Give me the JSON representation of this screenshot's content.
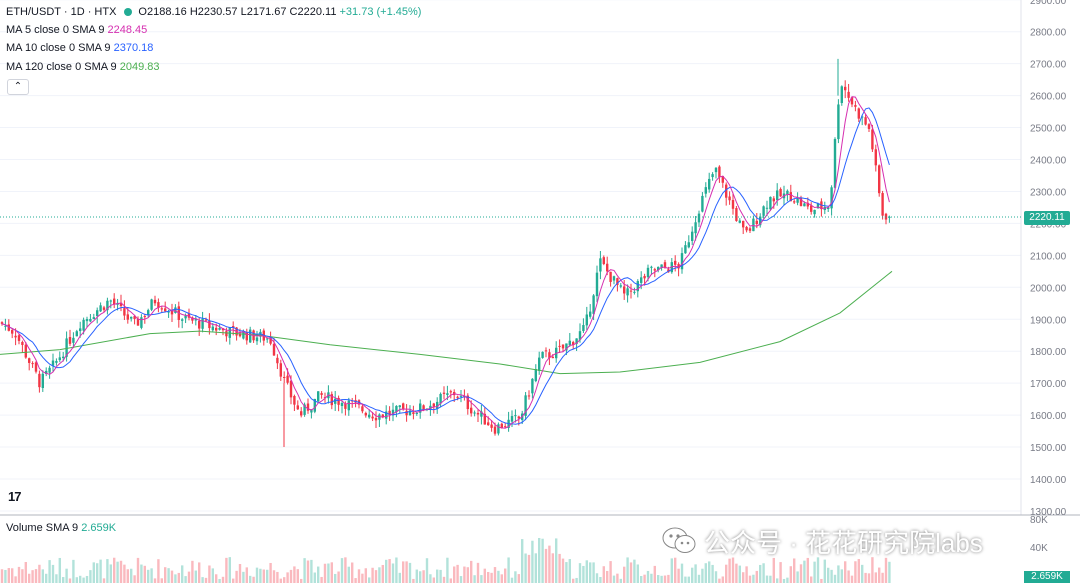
{
  "header": {
    "symbol": "ETH/USDT · 1D · HTX",
    "open": "O2188.16",
    "high": "H2230.57",
    "low": "L2171.67",
    "close": "C2220.11",
    "change": "+31.73 (+1.45%)"
  },
  "indicators": [
    {
      "label": "MA 5 close 0 SMA 9",
      "value": "2248.45",
      "color": "#d62fb0"
    },
    {
      "label": "MA 10 close 0 SMA 9",
      "value": "2370.18",
      "color": "#2962ff"
    },
    {
      "label": "MA 120 close 0 SMA 9",
      "value": "2049.83",
      "color": "#4caf50"
    }
  ],
  "collapse_glyph": "⌃",
  "volume_legend": {
    "label": "Volume SMA 9",
    "value": "2.659K"
  },
  "last_price_label": "2220.11",
  "volume_axis_labels": [
    "80K",
    "40K"
  ],
  "volume_last_label": "2.659K",
  "logo_text": "17",
  "watermark_text": "公众号 · 花花研究院labs",
  "colors": {
    "up": "#22ab94",
    "down": "#f23645",
    "grid": "#f0f3fa",
    "text": "#131722"
  },
  "chart_data": {
    "type": "candlestick",
    "y_ticks": [
      1300,
      1400,
      1500,
      1600,
      1700,
      1800,
      1900,
      2000,
      2100,
      2200,
      2300,
      2400,
      2500,
      2600,
      2700,
      2800,
      2900
    ],
    "ylim": [
      1300,
      2900
    ],
    "ma120_approx": [
      [
        0,
        1790
      ],
      [
        60,
        1805
      ],
      [
        150,
        1855
      ],
      [
        200,
        1863
      ],
      [
        260,
        1850
      ],
      [
        330,
        1820
      ],
      [
        420,
        1790
      ],
      [
        500,
        1760
      ],
      [
        560,
        1730
      ],
      [
        620,
        1735
      ],
      [
        700,
        1765
      ],
      [
        780,
        1830
      ],
      [
        840,
        1920
      ],
      [
        892,
        2050
      ]
    ],
    "key_points": {
      "last_close": 2220.11,
      "peak_high": 2715,
      "low_spike": 1500
    }
  }
}
